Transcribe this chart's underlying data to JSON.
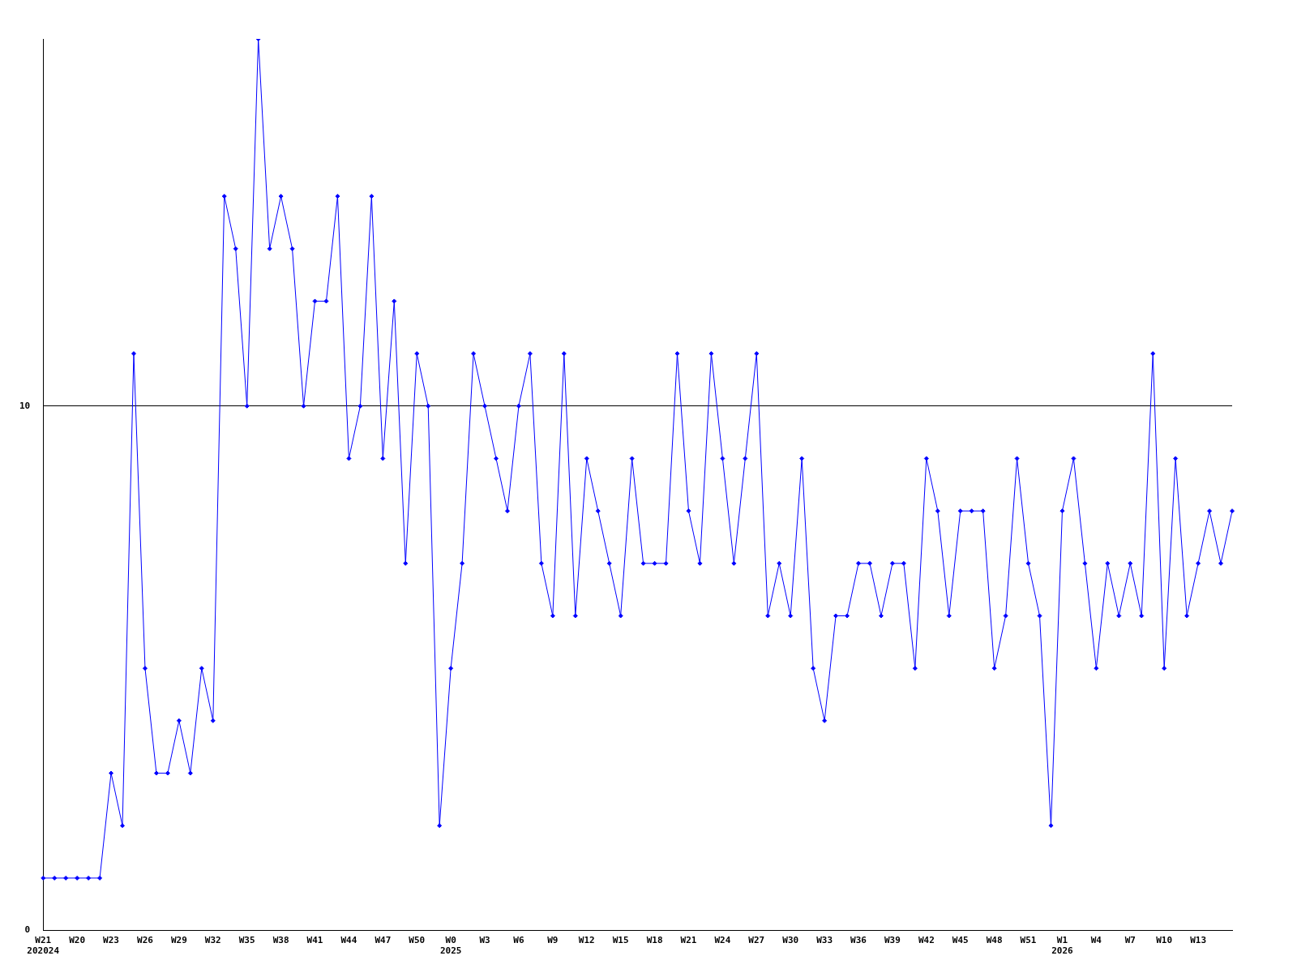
{
  "chart_data": {
    "type": "line",
    "categories": [
      "W21\n202024",
      null,
      null,
      "W20",
      null,
      null,
      "W23",
      null,
      null,
      "W26",
      null,
      null,
      "W29",
      null,
      null,
      "W32",
      null,
      null,
      "W35",
      null,
      null,
      "W38",
      null,
      null,
      "W41",
      null,
      null,
      "W44",
      null,
      null,
      "W47",
      null,
      null,
      "W50",
      null,
      null,
      "W0\n2025",
      null,
      null,
      "W3",
      null,
      null,
      "W6",
      null,
      null,
      "W9",
      null,
      null,
      "W12",
      null,
      null,
      "W15",
      null,
      null,
      "W18",
      null,
      null,
      "W21",
      null,
      null,
      "W24",
      null,
      null,
      "W27",
      null,
      null,
      "W30",
      null,
      null,
      "W33",
      null,
      null,
      "W36",
      null,
      null,
      "W39",
      null,
      null,
      "W42",
      null,
      null,
      "W45",
      null,
      null,
      "W48",
      null,
      null,
      "W51",
      null,
      null,
      "W1\n2026",
      null,
      null,
      "W4",
      null,
      null,
      "W7",
      null,
      null,
      "W10",
      null,
      null,
      "W13",
      null,
      null,
      null
    ],
    "series": [
      {
        "color": "#0000ff",
        "values": [
          1,
          1,
          1,
          1,
          1,
          1,
          3,
          2,
          11,
          5,
          3,
          3,
          4,
          3,
          5,
          4,
          14,
          13,
          10,
          17,
          13,
          14,
          13,
          10,
          12,
          12,
          14,
          9,
          10,
          14,
          9,
          12,
          7,
          11,
          10,
          2,
          5,
          7,
          11,
          10,
          9,
          8,
          10,
          11,
          7,
          6,
          11,
          6,
          9,
          8,
          7,
          6,
          9,
          7,
          7,
          7,
          11,
          8,
          7,
          11,
          9,
          7,
          9,
          11,
          6,
          7,
          6,
          9,
          5,
          4,
          6,
          6,
          7,
          7,
          6,
          7,
          7,
          5,
          9,
          8,
          6,
          8,
          8,
          8,
          5,
          6,
          9,
          7,
          6,
          2,
          8,
          9,
          7,
          5,
          7,
          6,
          7,
          6,
          11,
          5,
          9,
          6,
          7,
          8,
          7,
          8
        ]
      }
    ],
    "ylim": [
      0,
      17
    ],
    "yticks": [
      0,
      10
    ],
    "grid": "y",
    "marker": "diamond",
    "line_style": "solid"
  }
}
